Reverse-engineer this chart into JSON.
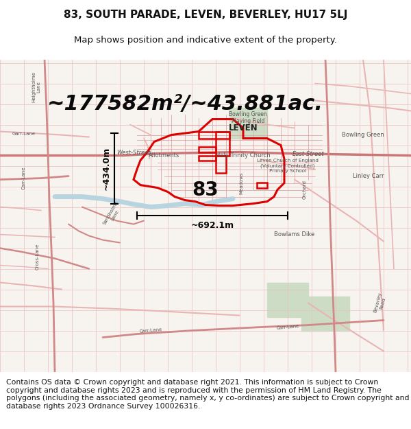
{
  "title": "83, SOUTH PARADE, LEVEN, BEVERLEY, HU17 5LJ",
  "subtitle": "Map shows position and indicative extent of the property.",
  "area_text": "~177582m²/~43.881ac.",
  "label_83": "83",
  "dim_vertical": "~434.0m",
  "dim_horizontal": "~692.1m",
  "footer": "Contains OS data © Crown copyright and database right 2021. This information is subject to Crown copyright and database rights 2023 and is reproduced with the permission of HM Land Registry. The polygons (including the associated geometry, namely x, y co-ordinates) are subject to Crown copyright and database rights 2023 Ordnance Survey 100026316.",
  "bg_color": "#ffffff",
  "map_bg": "#f7f3ee",
  "title_fontsize": 11,
  "subtitle_fontsize": 9.5,
  "area_fontsize": 22,
  "label_fontsize": 20,
  "footer_fontsize": 7.8,
  "highlight_color": "#dd0000",
  "dim_line_color": "#000000",
  "road_thin": "#e8b4b4",
  "road_thick": "#d08888",
  "road_main": "#cc7777",
  "label_color": "#555555",
  "water_color": "#b8d4e0",
  "green_color": "#cddcc5"
}
